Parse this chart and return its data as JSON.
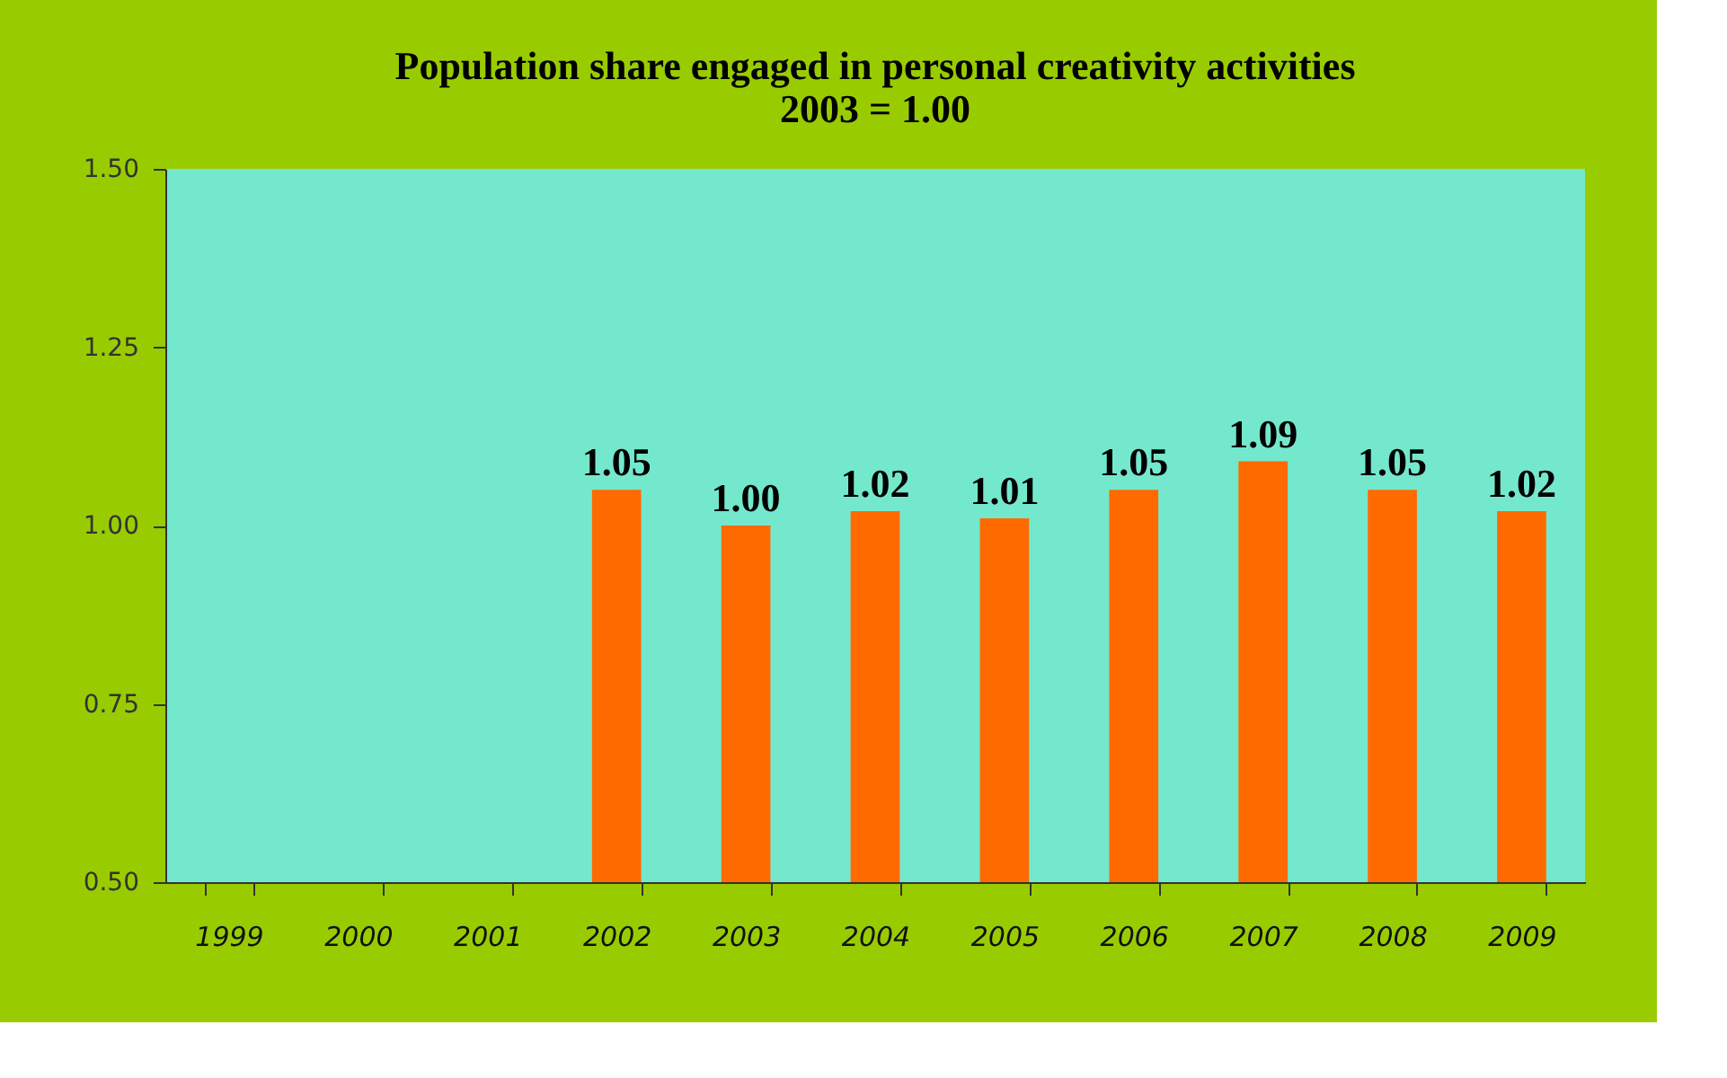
{
  "chart_data": {
    "type": "bar",
    "title": "Population share engaged in personal creativity activities",
    "subtitle": "2003 = 1.00",
    "categories": [
      "1999",
      "2000",
      "2001",
      "2002",
      "2003",
      "2004",
      "2005",
      "2006",
      "2007",
      "2008",
      "2009"
    ],
    "values": [
      null,
      null,
      null,
      1.05,
      1.0,
      1.02,
      1.01,
      1.05,
      1.09,
      1.05,
      1.02
    ],
    "value_labels": [
      null,
      null,
      null,
      "1.05",
      "1.00",
      "1.02",
      "1.01",
      "1.05",
      "1.09",
      "1.05",
      "1.02"
    ],
    "color": "#ff6a00",
    "ylim": [
      0.5,
      1.5
    ],
    "yticks": [
      {
        "value": 0.5,
        "label": "0.50"
      },
      0.75,
      {
        "value": 1.0,
        "label": "1.00"
      },
      1.25,
      {
        "value": 1.5,
        "label": "1.50"
      }
    ]
  }
}
